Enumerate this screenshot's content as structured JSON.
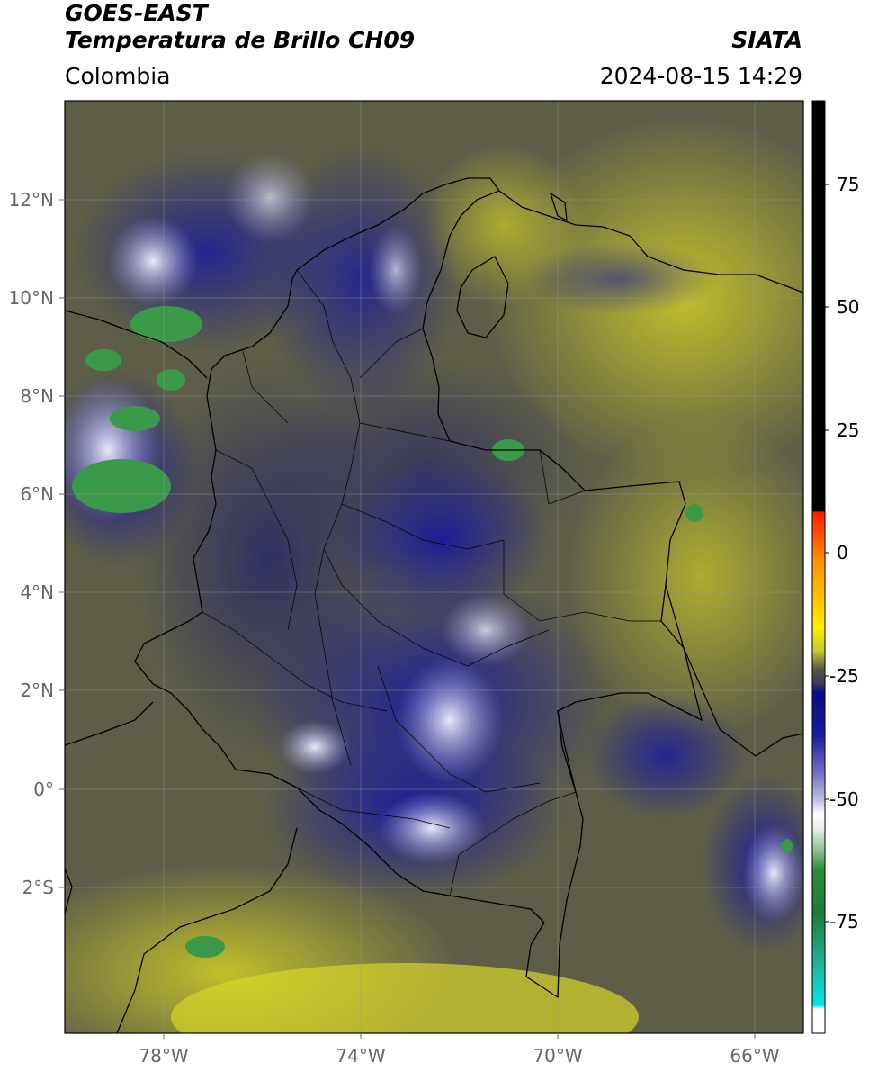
{
  "header": {
    "satellite": "GOES-EAST",
    "product": "Temperatura de Brillo CH09",
    "region": "Colombia",
    "organization": "SIATA",
    "timestamp": "2024-08-15 14:29"
  },
  "map": {
    "lat_labels": [
      "12°N",
      "10°N",
      "8°N",
      "6°N",
      "4°N",
      "2°N",
      "0°",
      "2°S"
    ],
    "lon_labels": [
      "78°W",
      "74°W",
      "70°W",
      "66°W"
    ],
    "lon_range": [
      -80,
      -65
    ],
    "lat_range": [
      -5,
      14
    ]
  },
  "colorbar": {
    "labels": [
      "75",
      "50",
      "25",
      "0",
      "-25",
      "-50",
      "-75"
    ],
    "colors": {
      "black": "#000000",
      "red": "#ff1a00",
      "orange": "#ff9900",
      "yellow": "#ffee00",
      "olive": "#a8a830",
      "dark_olive": "#555540",
      "navy": "#0a0a8a",
      "white": "#ffffff",
      "green": "#2e8b3a",
      "cyan": "#00e5e5"
    }
  }
}
